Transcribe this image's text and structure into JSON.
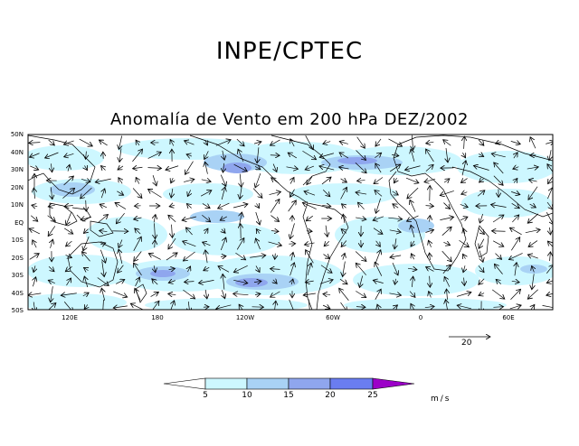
{
  "header": {
    "title": "INPE/CPTEC",
    "subtitle": "Anomalía de Vento em 200 hPa DEZ/2002"
  },
  "map": {
    "lat_labels": [
      "50N",
      "40N",
      "30N",
      "20N",
      "10N",
      "EQ",
      "10S",
      "20S",
      "30S",
      "40S",
      "50S"
    ],
    "lon_labels": [
      "120E",
      "180",
      "120W",
      "60W",
      "0",
      "60E"
    ],
    "reference_vector_label": "20",
    "reference_vector_value": 20
  },
  "colorbar": {
    "levels": [
      "5",
      "10",
      "15",
      "20",
      "25"
    ],
    "units": "m/s",
    "colors": [
      "#ffffff",
      "#cdf7ff",
      "#a9d2f5",
      "#8fa6ee",
      "#6a7df0",
      "#9c00c8"
    ]
  }
}
